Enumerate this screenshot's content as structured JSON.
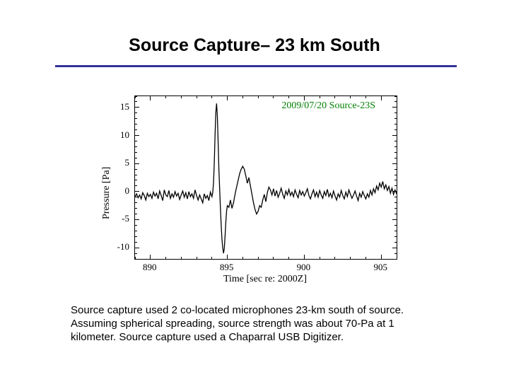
{
  "title": "Source Capture– 23 km South",
  "title_color": "#000000",
  "title_fontsize": 25,
  "title_underline_color": "#333399",
  "chart": {
    "type": "line",
    "inner_title": "2009/07/20  Source-23S",
    "inner_title_color": "#008000",
    "inner_title_fontsize": 14,
    "xlabel": "Time [sec re: 2000Z]",
    "ylabel": "Pressure [Pa]",
    "label_fontsize": 14,
    "xlim": [
      889,
      906
    ],
    "ylim": [
      -12,
      17
    ],
    "xticks": [
      890,
      895,
      900,
      905
    ],
    "yticks": [
      -10,
      -5,
      0,
      5,
      10,
      15
    ],
    "line_color": "#000000",
    "line_width": 1.3,
    "background_color": "#ffffff",
    "border_color": "#000000",
    "tick_fontsize": 13,
    "minor_tick_interval_x": 1,
    "minor_tick_interval_y": 1,
    "series": [
      [
        889.0,
        -0.9
      ],
      [
        889.1,
        -0.4
      ],
      [
        889.2,
        -1.1
      ],
      [
        889.3,
        -0.6
      ],
      [
        889.4,
        -1.3
      ],
      [
        889.5,
        -0.2
      ],
      [
        889.6,
        -0.7
      ],
      [
        889.7,
        -1.5
      ],
      [
        889.8,
        -0.3
      ],
      [
        889.9,
        -0.9
      ],
      [
        890.0,
        -0.5
      ],
      [
        890.1,
        -1.2
      ],
      [
        890.2,
        -0.1
      ],
      [
        890.3,
        -0.8
      ],
      [
        890.4,
        -0.3
      ],
      [
        890.5,
        -1.3
      ],
      [
        890.6,
        0.1
      ],
      [
        890.7,
        -0.7
      ],
      [
        890.8,
        -1.6
      ],
      [
        890.9,
        0.3
      ],
      [
        891.0,
        -0.6
      ],
      [
        891.1,
        -0.9
      ],
      [
        891.2,
        0.2
      ],
      [
        891.3,
        -1.2
      ],
      [
        891.4,
        -0.4
      ],
      [
        891.5,
        -1.0
      ],
      [
        891.6,
        0.0
      ],
      [
        891.7,
        -0.8
      ],
      [
        891.8,
        -0.3
      ],
      [
        891.9,
        -1.4
      ],
      [
        892.0,
        -0.6
      ],
      [
        892.1,
        0.1
      ],
      [
        892.2,
        -1.0
      ],
      [
        892.3,
        -0.2
      ],
      [
        892.4,
        -1.3
      ],
      [
        892.5,
        0.0
      ],
      [
        892.6,
        -0.9
      ],
      [
        892.7,
        -0.4
      ],
      [
        892.8,
        -1.2
      ],
      [
        892.9,
        0.3
      ],
      [
        893.0,
        -0.7
      ],
      [
        893.1,
        -1.5
      ],
      [
        893.2,
        -0.6
      ],
      [
        893.3,
        -1.3
      ],
      [
        893.4,
        -2.0
      ],
      [
        893.5,
        -0.4
      ],
      [
        893.6,
        -1.2
      ],
      [
        893.7,
        -0.7
      ],
      [
        893.8,
        -1.6
      ],
      [
        893.9,
        -0.1
      ],
      [
        894.0,
        -0.9
      ],
      [
        894.05,
        -0.2
      ],
      [
        894.1,
        1.5
      ],
      [
        894.15,
        5.0
      ],
      [
        894.2,
        10.0
      ],
      [
        894.25,
        14.0
      ],
      [
        894.3,
        15.7
      ],
      [
        894.35,
        13.5
      ],
      [
        894.4,
        9.0
      ],
      [
        894.45,
        4.0
      ],
      [
        894.5,
        0.5
      ],
      [
        894.55,
        -3.0
      ],
      [
        894.6,
        -6.0
      ],
      [
        894.65,
        -8.5
      ],
      [
        894.7,
        -10.0
      ],
      [
        894.75,
        -11.0
      ],
      [
        894.8,
        -10.2
      ],
      [
        894.85,
        -8.0
      ],
      [
        894.9,
        -5.5
      ],
      [
        894.95,
        -3.5
      ],
      [
        895.0,
        -2.5
      ],
      [
        895.1,
        -2.8
      ],
      [
        895.2,
        -1.5
      ],
      [
        895.3,
        -3.0
      ],
      [
        895.4,
        -2.0
      ],
      [
        895.5,
        -0.5
      ],
      [
        895.6,
        0.8
      ],
      [
        895.7,
        2.0
      ],
      [
        895.8,
        3.2
      ],
      [
        895.9,
        4.0
      ],
      [
        896.0,
        4.5
      ],
      [
        896.1,
        4.0
      ],
      [
        896.2,
        2.8
      ],
      [
        896.3,
        1.5
      ],
      [
        896.4,
        2.5
      ],
      [
        896.5,
        1.0
      ],
      [
        896.6,
        -0.5
      ],
      [
        896.7,
        -2.0
      ],
      [
        896.8,
        -3.2
      ],
      [
        896.9,
        -4.0
      ],
      [
        897.0,
        -3.5
      ],
      [
        897.1,
        -2.5
      ],
      [
        897.2,
        -2.8
      ],
      [
        897.3,
        -1.5
      ],
      [
        897.4,
        -0.5
      ],
      [
        897.5,
        -1.8
      ],
      [
        897.6,
        -0.2
      ],
      [
        897.7,
        0.8
      ],
      [
        897.8,
        0.3
      ],
      [
        897.9,
        -0.6
      ],
      [
        898.0,
        0.5
      ],
      [
        898.1,
        -0.8
      ],
      [
        898.2,
        0.2
      ],
      [
        898.3,
        -1.0
      ],
      [
        898.4,
        -0.3
      ],
      [
        898.5,
        0.6
      ],
      [
        898.6,
        -0.5
      ],
      [
        898.7,
        -1.2
      ],
      [
        898.8,
        0.1
      ],
      [
        898.9,
        -0.6
      ],
      [
        899.0,
        0.4
      ],
      [
        899.1,
        -0.7
      ],
      [
        899.2,
        -0.1
      ],
      [
        899.3,
        -0.9
      ],
      [
        899.4,
        0.3
      ],
      [
        899.5,
        -0.5
      ],
      [
        899.6,
        -1.1
      ],
      [
        899.7,
        0.2
      ],
      [
        899.8,
        -0.6
      ],
      [
        899.9,
        0.0
      ],
      [
        900.0,
        -0.8
      ],
      [
        900.1,
        -0.2
      ],
      [
        900.2,
        0.5
      ],
      [
        900.3,
        -0.7
      ],
      [
        900.4,
        -1.3
      ],
      [
        900.5,
        -0.4
      ],
      [
        900.6,
        0.3
      ],
      [
        900.7,
        -0.9
      ],
      [
        900.8,
        -0.1
      ],
      [
        900.9,
        -1.0
      ],
      [
        901.0,
        0.2
      ],
      [
        901.1,
        -0.6
      ],
      [
        901.2,
        -1.2
      ],
      [
        901.3,
        0.0
      ],
      [
        901.4,
        -0.7
      ],
      [
        901.5,
        0.4
      ],
      [
        901.6,
        -0.9
      ],
      [
        901.7,
        -0.3
      ],
      [
        901.8,
        -1.1
      ],
      [
        901.9,
        0.1
      ],
      [
        902.0,
        -0.8
      ],
      [
        902.1,
        -1.5
      ],
      [
        902.2,
        -0.4
      ],
      [
        902.3,
        -1.0
      ],
      [
        902.4,
        0.2
      ],
      [
        902.5,
        -0.7
      ],
      [
        902.6,
        -1.3
      ],
      [
        902.7,
        -0.1
      ],
      [
        902.8,
        -0.9
      ],
      [
        902.9,
        0.3
      ],
      [
        903.0,
        -0.5
      ],
      [
        903.1,
        -1.2
      ],
      [
        903.2,
        -0.6
      ],
      [
        903.3,
        0.1
      ],
      [
        903.4,
        -0.8
      ],
      [
        903.5,
        -1.6
      ],
      [
        903.6,
        -0.3
      ],
      [
        903.7,
        -1.0
      ],
      [
        903.8,
        0.0
      ],
      [
        903.9,
        -0.7
      ],
      [
        904.0,
        -1.3
      ],
      [
        904.1,
        -0.4
      ],
      [
        904.2,
        -1.0
      ],
      [
        904.3,
        0.2
      ],
      [
        904.4,
        -0.6
      ],
      [
        904.5,
        0.5
      ],
      [
        904.6,
        -0.2
      ],
      [
        904.7,
        1.0
      ],
      [
        904.8,
        0.3
      ],
      [
        904.9,
        1.5
      ],
      [
        905.0,
        0.8
      ],
      [
        905.1,
        1.8
      ],
      [
        905.2,
        0.5
      ],
      [
        905.3,
        1.2
      ],
      [
        905.4,
        0.2
      ],
      [
        905.5,
        0.9
      ],
      [
        905.6,
        -0.3
      ],
      [
        905.7,
        0.6
      ],
      [
        905.8,
        -0.5
      ],
      [
        905.9,
        0.3
      ],
      [
        906.0,
        -0.4
      ]
    ]
  },
  "caption": "Source capture used 2 co-located microphones 23-km south of source. Assuming spherical spreading, source strength was about 70-Pa at 1 kilometer.  Source capture used a Chaparral USB Digitizer."
}
